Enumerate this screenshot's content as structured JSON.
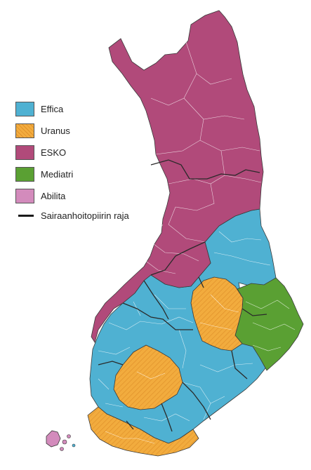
{
  "map": {
    "country": "Finland",
    "legend": {
      "items": [
        {
          "label": "Effica",
          "color": "#4fb1d2",
          "pattern": "solid"
        },
        {
          "label": "Uranus",
          "color": "#f2ac3e",
          "pattern": "hatched"
        },
        {
          "label": "ESKO",
          "color": "#b14a7a",
          "pattern": "solid"
        },
        {
          "label": "Mediatri",
          "color": "#5aa033",
          "pattern": "solid"
        },
        {
          "label": "Abilita",
          "color": "#d38bbc",
          "pattern": "solid"
        }
      ],
      "line_label": "Sairaanhoitopiirin raja",
      "line_color": "#1a1a1a"
    }
  }
}
